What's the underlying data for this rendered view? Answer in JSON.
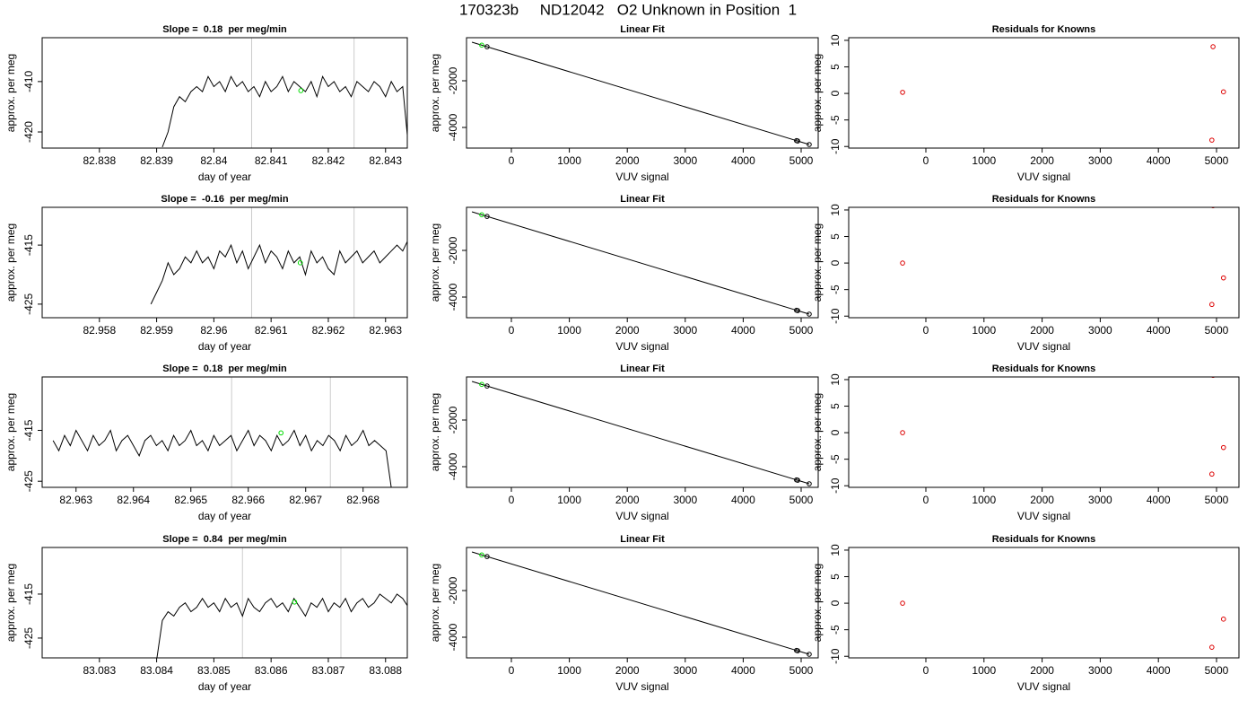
{
  "title": "170323b     ND12042   O2 Unknown in Position  1",
  "chart_data": [
    {
      "type": "line",
      "title": "Slope =  0.18  per meg/min",
      "xlabel": "day of year",
      "ylabel": "approx. per meg",
      "xlim": [
        82.837,
        82.84338
      ],
      "ylim": [
        -423.2,
        -401.3
      ],
      "xticks": [
        82.838,
        82.839,
        82.84,
        82.841,
        82.842,
        82.843
      ],
      "yticks": [
        -420,
        -410
      ],
      "vlines": [
        82.84066,
        82.84245
      ],
      "vline_color": "#cccccc",
      "series": [
        {
          "mode": "line",
          "color": "#000000",
          "x": [
            82.8391,
            82.8392,
            82.8393,
            82.8394,
            82.8395,
            82.8396,
            82.8397,
            82.8398,
            82.8399,
            82.84,
            82.8401,
            82.8402,
            82.8403,
            82.8404,
            82.8405,
            82.8406,
            82.8407,
            82.8408,
            82.8409,
            82.841,
            82.8411,
            82.8412,
            82.8413,
            82.8414,
            82.8415,
            82.8416,
            82.8417,
            82.8418,
            82.8419,
            82.842,
            82.8421,
            82.8422,
            82.8423,
            82.8424,
            82.8425,
            82.8426,
            82.8427,
            82.8428,
            82.8429,
            82.843,
            82.8431,
            82.8432,
            82.8433,
            82.8434
          ],
          "values": [
            -423,
            -420,
            -415,
            -413,
            -414,
            -412,
            -411,
            -412,
            -409,
            -411,
            -410,
            -412,
            -409,
            -411,
            -410,
            -412,
            -411,
            -413,
            -410,
            -412,
            -411,
            -409,
            -412,
            -410,
            -411,
            -412,
            -410,
            -413,
            -409,
            -411,
            -410,
            -412,
            -411,
            -413,
            -410,
            -411,
            -412,
            -410,
            -411,
            -413,
            -410,
            -412,
            -411,
            -423
          ]
        },
        {
          "mode": "points",
          "color": "#00dd00",
          "x": [
            82.84152
          ],
          "values": [
            -411.8
          ]
        }
      ]
    },
    {
      "type": "scatter",
      "title": "Linear Fit",
      "xlabel": "VUV signal",
      "ylabel": "approx. per meg",
      "xlim": [
        -774,
        5294
      ],
      "ylim": [
        -4885,
        -154
      ],
      "xticks": [
        0,
        1000,
        2000,
        3000,
        4000,
        5000
      ],
      "yticks": [
        -4000,
        -2000
      ],
      "series": [
        {
          "mode": "line",
          "color": "#000000",
          "x": [
            -680,
            5139
          ],
          "values": [
            -346,
            -4731
          ]
        },
        {
          "mode": "points",
          "color": "#000000",
          "x": [
            -420,
            4920,
            4940,
            5139
          ],
          "values": [
            -542,
            -4566,
            -4581,
            -4731
          ]
        },
        {
          "mode": "points",
          "color": "#00dd00",
          "x": [
            -511
          ],
          "values": [
            -474
          ]
        }
      ]
    },
    {
      "type": "scatter",
      "title": "Residuals for Knowns",
      "xlabel": "VUV signal",
      "ylabel": "approx. per meg",
      "xlim": [
        -1327,
        5386
      ],
      "ylim": [
        -10.3,
        10.5
      ],
      "xticks": [
        0,
        1000,
        2000,
        3000,
        4000,
        5000
      ],
      "yticks": [
        -10,
        -5,
        0,
        5,
        10
      ],
      "series": [
        {
          "mode": "points",
          "color": "#dd0000",
          "x": [
            -400,
            4940,
            5120,
            4920
          ],
          "values": [
            0.2,
            8.8,
            0.3,
            -8.8
          ]
        }
      ]
    },
    {
      "type": "line",
      "title": "Slope =  -0.16  per meg/min",
      "xlabel": "day of year",
      "ylabel": "approx. per meg",
      "xlim": [
        82.957,
        82.96338
      ],
      "ylim": [
        -427.3,
        -408.6
      ],
      "xticks": [
        82.958,
        82.959,
        82.96,
        82.961,
        82.962,
        82.963
      ],
      "yticks": [
        -425,
        -415
      ],
      "vlines": [
        82.96066,
        82.96245
      ],
      "vline_color": "#cccccc",
      "series": [
        {
          "mode": "line",
          "color": "#000000",
          "x": [
            82.9589,
            82.959,
            82.9591,
            82.9592,
            82.9593,
            82.9594,
            82.9595,
            82.9596,
            82.9597,
            82.9598,
            82.9599,
            82.96,
            82.9601,
            82.9602,
            82.9603,
            82.9604,
            82.9605,
            82.9606,
            82.9607,
            82.9608,
            82.9609,
            82.961,
            82.9611,
            82.9612,
            82.9613,
            82.9614,
            82.9615,
            82.9616,
            82.9617,
            82.9618,
            82.9619,
            82.962,
            82.9621,
            82.9622,
            82.9623,
            82.9624,
            82.9625,
            82.9626,
            82.9627,
            82.9628,
            82.9629,
            82.963,
            82.9631,
            82.9632,
            82.9633,
            82.9634
          ],
          "values": [
            -425,
            -423,
            -421,
            -418,
            -420,
            -419,
            -417,
            -418,
            -416,
            -418,
            -417,
            -419,
            -416,
            -417,
            -415,
            -418,
            -416,
            -419,
            -417,
            -415,
            -418,
            -416,
            -417,
            -419,
            -416,
            -418,
            -417,
            -420,
            -416,
            -418,
            -417,
            -419,
            -420,
            -416,
            -418,
            -417,
            -416,
            -418,
            -417,
            -416,
            -418,
            -417,
            -416,
            -415,
            -416,
            -414
          ]
        },
        {
          "mode": "points",
          "color": "#00dd00",
          "x": [
            82.96151
          ],
          "values": [
            -418
          ]
        }
      ]
    },
    {
      "type": "scatter",
      "title": "Linear Fit",
      "xlabel": "VUV signal",
      "ylabel": "approx. per meg",
      "xlim": [
        -774,
        5294
      ],
      "ylim": [
        -4885,
        -154
      ],
      "xticks": [
        0,
        1000,
        2000,
        3000,
        4000,
        5000
      ],
      "yticks": [
        -4000,
        -2000
      ],
      "series": [
        {
          "mode": "line",
          "color": "#000000",
          "x": [
            -680,
            5139
          ],
          "values": [
            -346,
            -4731
          ]
        },
        {
          "mode": "points",
          "color": "#000000",
          "x": [
            -420,
            4920,
            4940,
            5139
          ],
          "values": [
            -542,
            -4566,
            -4581,
            -4731
          ]
        },
        {
          "mode": "points",
          "color": "#00dd00",
          "x": [
            -511
          ],
          "values": [
            -474
          ]
        }
      ]
    },
    {
      "type": "scatter",
      "title": "Residuals for Knowns",
      "xlabel": "VUV signal",
      "ylabel": "approx. per meg",
      "xlim": [
        -1327,
        5386
      ],
      "ylim": [
        -10.3,
        10.5
      ],
      "xticks": [
        0,
        1000,
        2000,
        3000,
        4000,
        5000
      ],
      "yticks": [
        -10,
        -5,
        0,
        5,
        10
      ],
      "series": [
        {
          "mode": "points",
          "color": "#dd0000",
          "x": [
            -400,
            4940,
            5120,
            4920
          ],
          "values": [
            0,
            10.8,
            -2.8,
            -7.8
          ]
        }
      ]
    },
    {
      "type": "line",
      "title": "Slope =  0.18  per meg/min",
      "xlabel": "day of year",
      "ylabel": "approx. per meg",
      "xlim": [
        82.96241,
        82.96877
      ],
      "ylim": [
        -426.2,
        -404.5
      ],
      "xticks": [
        82.963,
        82.964,
        82.965,
        82.966,
        82.967,
        82.968
      ],
      "yticks": [
        -425,
        -415
      ],
      "vlines": [
        82.96571,
        82.96743
      ],
      "vline_color": "#cccccc",
      "series": [
        {
          "mode": "line",
          "color": "#000000",
          "x": [
            82.9626,
            82.9627,
            82.9628,
            82.9629,
            82.963,
            82.9631,
            82.9632,
            82.9633,
            82.9634,
            82.9635,
            82.9636,
            82.9637,
            82.9638,
            82.9639,
            82.964,
            82.9641,
            82.9642,
            82.9643,
            82.9644,
            82.9645,
            82.9646,
            82.9647,
            82.9648,
            82.9649,
            82.965,
            82.9651,
            82.9652,
            82.9653,
            82.9654,
            82.9655,
            82.9656,
            82.9657,
            82.9658,
            82.9659,
            82.966,
            82.9661,
            82.9662,
            82.9663,
            82.9664,
            82.9665,
            82.9666,
            82.9667,
            82.9668,
            82.9669,
            82.967,
            82.9671,
            82.9672,
            82.9673,
            82.9674,
            82.9675,
            82.9676,
            82.9677,
            82.9678,
            82.9679,
            82.968,
            82.9681,
            82.9682,
            82.9683,
            82.9684,
            82.9685
          ],
          "values": [
            -417,
            -419,
            -416,
            -418,
            -415,
            -417,
            -419,
            -416,
            -418,
            -417,
            -415,
            -419,
            -417,
            -416,
            -418,
            -420,
            -417,
            -416,
            -418,
            -417,
            -419,
            -416,
            -418,
            -417,
            -415,
            -418,
            -417,
            -419,
            -416,
            -418,
            -417,
            -416,
            -419,
            -417,
            -415,
            -418,
            -416,
            -417,
            -419,
            -416,
            -418,
            -417,
            -415,
            -418,
            -416,
            -419,
            -417,
            -418,
            -416,
            -417,
            -419,
            -416,
            -418,
            -417,
            -415,
            -418,
            -417,
            -418,
            -419,
            -427
          ]
        },
        {
          "mode": "points",
          "color": "#00dd00",
          "x": [
            82.96657
          ],
          "values": [
            -415.5
          ]
        }
      ]
    },
    {
      "type": "scatter",
      "title": "Linear Fit",
      "xlabel": "VUV signal",
      "ylabel": "approx. per meg",
      "xlim": [
        -774,
        5294
      ],
      "ylim": [
        -4885,
        -154
      ],
      "xticks": [
        0,
        1000,
        2000,
        3000,
        4000,
        5000
      ],
      "yticks": [
        -4000,
        -2000
      ],
      "series": [
        {
          "mode": "line",
          "color": "#000000",
          "x": [
            -680,
            5139
          ],
          "values": [
            -346,
            -4731
          ]
        },
        {
          "mode": "points",
          "color": "#000000",
          "x": [
            -420,
            4920,
            4940,
            5139
          ],
          "values": [
            -542,
            -4566,
            -4581,
            -4731
          ]
        },
        {
          "mode": "points",
          "color": "#00dd00",
          "x": [
            -511
          ],
          "values": [
            -474
          ]
        }
      ]
    },
    {
      "type": "scatter",
      "title": "Residuals for Knowns",
      "xlabel": "VUV signal",
      "ylabel": "approx. per meg",
      "xlim": [
        -1327,
        5386
      ],
      "ylim": [
        -10.3,
        10.5
      ],
      "xticks": [
        0,
        1000,
        2000,
        3000,
        4000,
        5000
      ],
      "yticks": [
        -10,
        -5,
        0,
        5,
        10
      ],
      "series": [
        {
          "mode": "points",
          "color": "#dd0000",
          "x": [
            -400,
            4940,
            5120,
            4920
          ],
          "values": [
            0,
            10.8,
            -2.8,
            -7.8
          ]
        }
      ]
    },
    {
      "type": "line",
      "title": "Slope =  0.84  per meg/min",
      "xlabel": "day of year",
      "ylabel": "approx. per meg",
      "xlim": [
        83.082,
        83.08838
      ],
      "ylim": [
        -429.5,
        -404.4
      ],
      "xticks": [
        83.083,
        83.084,
        83.085,
        83.086,
        83.087,
        83.088
      ],
      "yticks": [
        -425,
        -415
      ],
      "vlines": [
        83.0855,
        83.08722
      ],
      "vline_color": "#cccccc",
      "series": [
        {
          "mode": "line",
          "color": "#000000",
          "x": [
            83.084,
            83.0841,
            83.0842,
            83.0843,
            83.0844,
            83.0845,
            83.0846,
            83.0847,
            83.0848,
            83.0849,
            83.085,
            83.0851,
            83.0852,
            83.0853,
            83.0854,
            83.0855,
            83.0856,
            83.0857,
            83.0858,
            83.0859,
            83.086,
            83.0861,
            83.0862,
            83.0863,
            83.0864,
            83.0865,
            83.0866,
            83.0867,
            83.0868,
            83.0869,
            83.087,
            83.0871,
            83.0872,
            83.0873,
            83.0874,
            83.0875,
            83.0876,
            83.0877,
            83.0878,
            83.0879,
            83.088,
            83.0881,
            83.0882,
            83.0883,
            83.0884
          ],
          "values": [
            -430,
            -421,
            -419,
            -420,
            -418,
            -417,
            -419,
            -418,
            -416,
            -418,
            -417,
            -419,
            -416,
            -418,
            -417,
            -420,
            -416,
            -418,
            -419,
            -417,
            -416,
            -418,
            -417,
            -419,
            -416,
            -418,
            -420,
            -417,
            -418,
            -416,
            -419,
            -417,
            -418,
            -416,
            -419,
            -417,
            -416,
            -418,
            -417,
            -415,
            -416,
            -417,
            -415,
            -416,
            -418
          ]
        },
        {
          "mode": "points",
          "color": "#00dd00",
          "x": [
            83.08641
          ],
          "values": [
            -416.8
          ]
        }
      ]
    },
    {
      "type": "scatter",
      "title": "Linear Fit",
      "xlabel": "VUV signal",
      "ylabel": "approx. per meg",
      "xlim": [
        -774,
        5294
      ],
      "ylim": [
        -4885,
        -154
      ],
      "xticks": [
        0,
        1000,
        2000,
        3000,
        4000,
        5000
      ],
      "yticks": [
        -4000,
        -2000
      ],
      "series": [
        {
          "mode": "line",
          "color": "#000000",
          "x": [
            -680,
            5139
          ],
          "values": [
            -346,
            -4731
          ]
        },
        {
          "mode": "points",
          "color": "#000000",
          "x": [
            -420,
            4920,
            4940,
            5139
          ],
          "values": [
            -542,
            -4566,
            -4581,
            -4731
          ]
        },
        {
          "mode": "points",
          "color": "#00dd00",
          "x": [
            -511
          ],
          "values": [
            -474
          ]
        }
      ]
    },
    {
      "type": "scatter",
      "title": "Residuals for Knowns",
      "xlabel": "VUV signal",
      "ylabel": "approx. per meg",
      "xlim": [
        -1327,
        5386
      ],
      "ylim": [
        -10.3,
        10.5
      ],
      "xticks": [
        0,
        1000,
        2000,
        3000,
        4000,
        5000
      ],
      "yticks": [
        -10,
        -5,
        0,
        5,
        10
      ],
      "series": [
        {
          "mode": "points",
          "color": "#dd0000",
          "x": [
            -400,
            5120,
            4920
          ],
          "values": [
            0,
            -3,
            -8.3
          ]
        }
      ]
    }
  ]
}
